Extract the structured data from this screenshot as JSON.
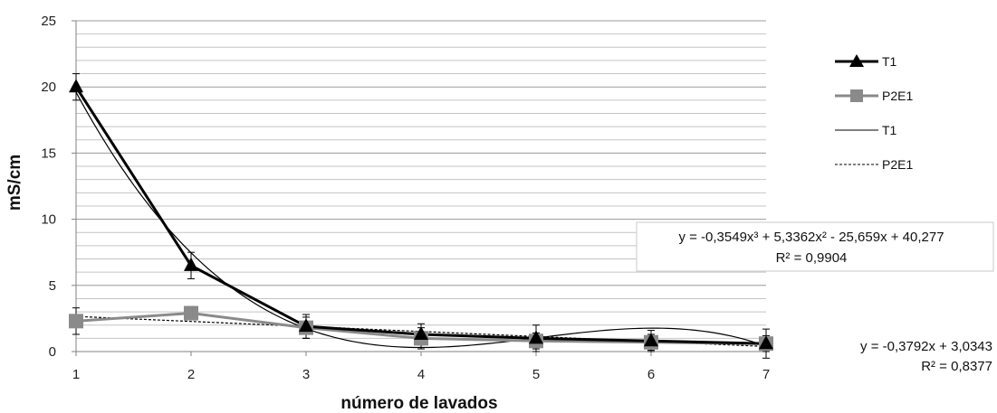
{
  "chart_data": {
    "type": "line",
    "xlabel": "número de lavados",
    "ylabel": "mS/cm",
    "x": [
      1,
      2,
      3,
      4,
      5,
      6,
      7
    ],
    "xlim": [
      1,
      7
    ],
    "ylim": [
      0,
      25
    ],
    "y_major_ticks": [
      0,
      5,
      10,
      15,
      20,
      25
    ],
    "y_minor_gridline_step": 1,
    "grid": true,
    "legend_position": "right",
    "series": [
      {
        "name": "T1",
        "kind": "data",
        "marker": "triangle",
        "color": "#000000",
        "values": [
          20.0,
          6.5,
          1.9,
          1.3,
          1.0,
          0.8,
          0.6
        ],
        "error": [
          1.0,
          1.0,
          0.9,
          0.8,
          1.0,
          0.8,
          1.1
        ]
      },
      {
        "name": "P2E1",
        "kind": "data",
        "marker": "square",
        "color": "#8a8a8a",
        "values": [
          2.3,
          2.9,
          1.8,
          1.0,
          0.8,
          0.7,
          0.6
        ],
        "error": [
          1.0,
          0.5,
          0.8,
          0.8,
          0.6,
          0.6,
          0.6
        ]
      },
      {
        "name": "T1",
        "kind": "trendline",
        "fit": "polynomial",
        "coefficients": [
          -0.3549,
          5.3362,
          -25.659,
          40.277
        ],
        "style": "solid",
        "color": "#000000"
      },
      {
        "name": "P2E1",
        "kind": "trendline",
        "fit": "linear",
        "coefficients": [
          -0.3792,
          3.0343
        ],
        "style": "dashed",
        "color": "#000000"
      }
    ],
    "annotations": [
      {
        "line1": "y = -0,3549x³ + 5,3362x² - 25,659x + 40,277",
        "line2": "R² = 0,9904",
        "boxed": true
      },
      {
        "line1": "y = -0,3792x + 3,0343",
        "line2": "R² = 0,8377",
        "boxed": false
      }
    ]
  }
}
